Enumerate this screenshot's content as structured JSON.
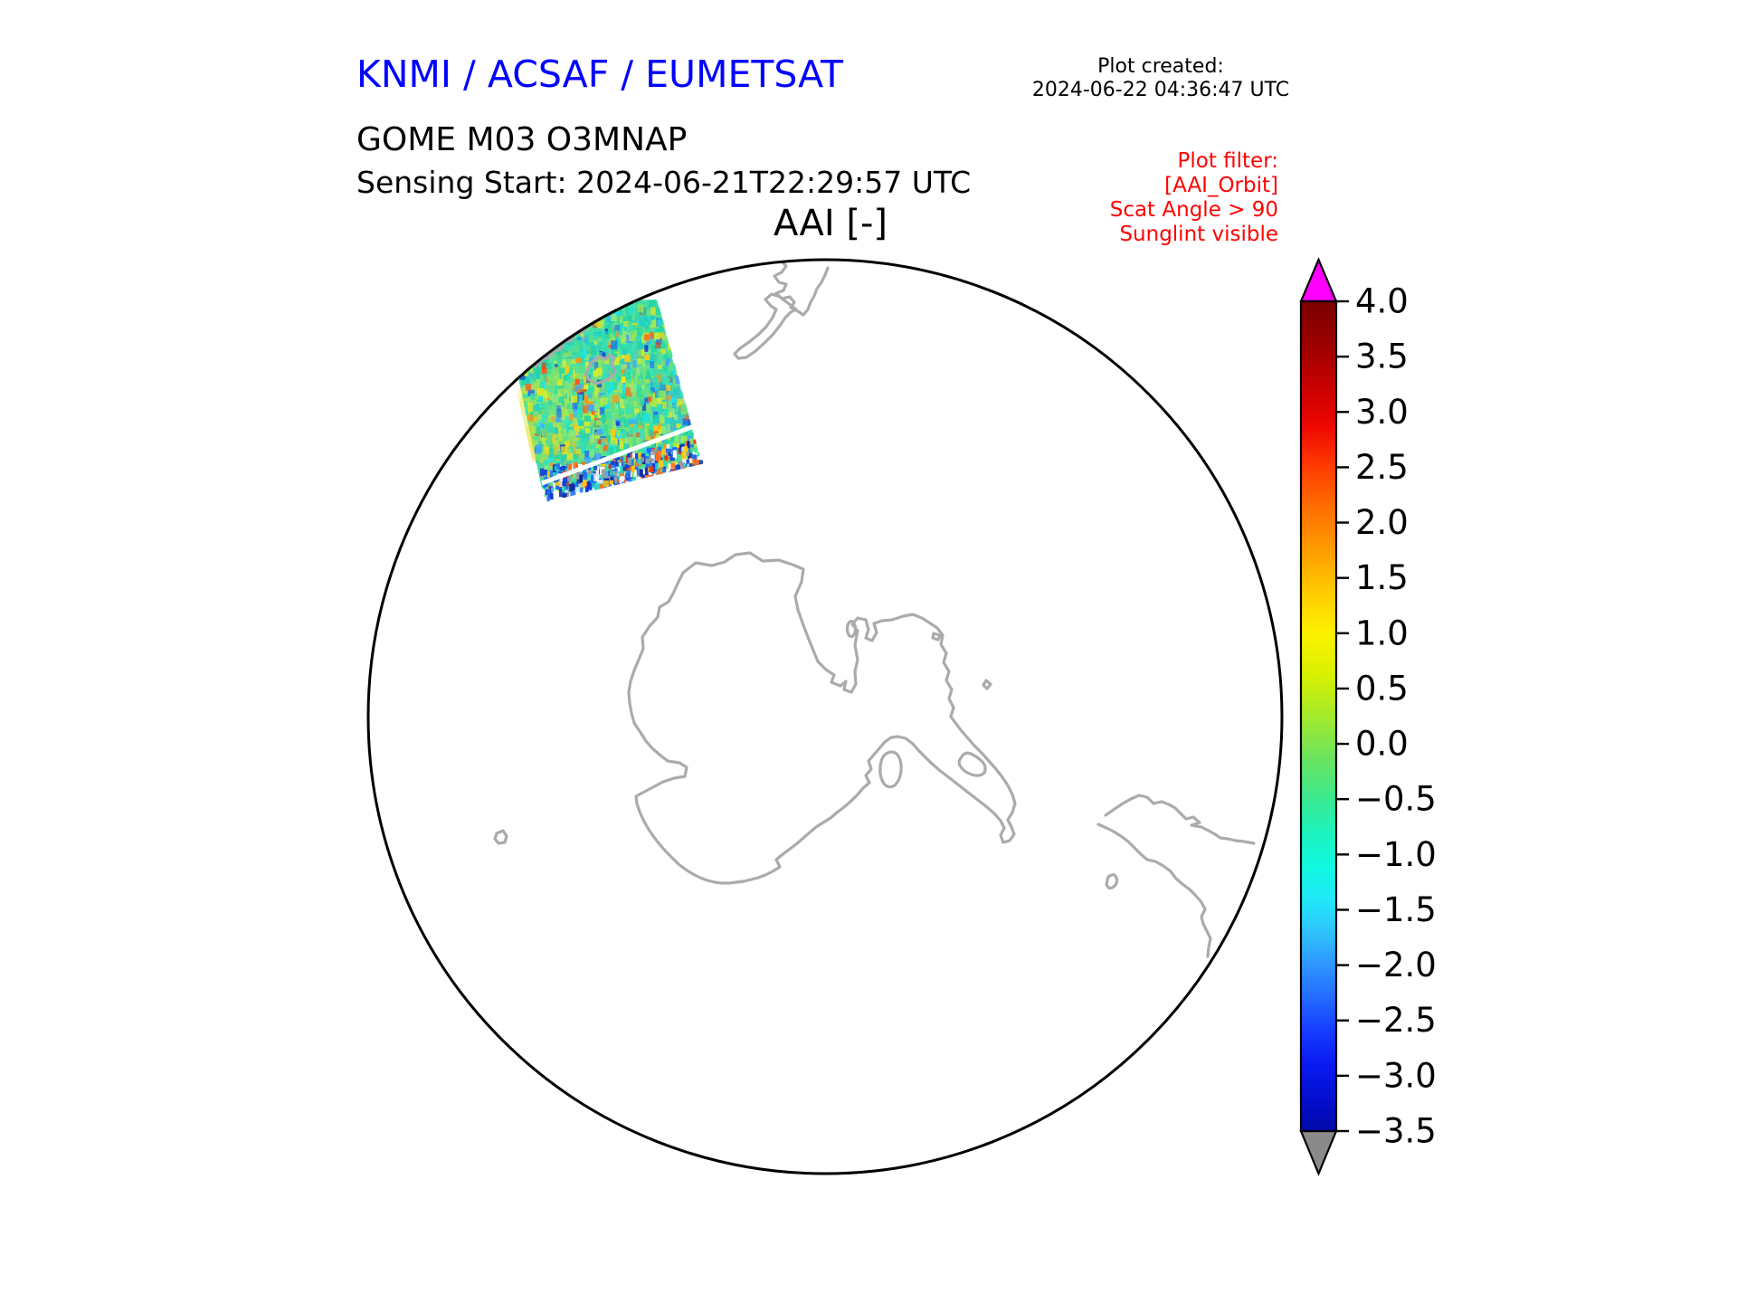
{
  "header": {
    "agency_title": "KNMI / ACSAF / EUMETSAT",
    "agency_title_color": "#0000ff",
    "plot_created_label": "Plot created:",
    "plot_created_timestamp": "2024-06-22 04:36:47 UTC",
    "product_title": "GOME M03 O3MNAP",
    "sensing_start": "Sensing Start: 2024-06-21T22:29:57 UTC"
  },
  "plot": {
    "title": "AAI [-]",
    "filter_lines": [
      "Plot filter:",
      "[AAI_Orbit]",
      "Scat Angle > 90",
      "Sunglint visible"
    ],
    "filter_color": "#ff0000",
    "map_outline_color": "#000000",
    "coastline_color": "#ababab",
    "background_color": "#ffffff"
  },
  "colorbar": {
    "tick_labels": [
      "4.0",
      "3.5",
      "3.0",
      "2.5",
      "2.0",
      "1.5",
      "1.0",
      "0.5",
      "0.0",
      "−0.5",
      "−1.0",
      "−1.5",
      "−2.0",
      "−2.5",
      "−3.0",
      "−3.5"
    ],
    "over_arrow_color": "#ff00ff",
    "under_arrow_color": "#8a8a8a",
    "gradient_stops": [
      [
        0.0,
        "#7a0000"
      ],
      [
        0.05,
        "#9a0000"
      ],
      [
        0.1,
        "#c60000"
      ],
      [
        0.15,
        "#ee0600"
      ],
      [
        0.2,
        "#ff3c00"
      ],
      [
        0.25,
        "#ff6f00"
      ],
      [
        0.3,
        "#ff9d00"
      ],
      [
        0.35,
        "#ffca00"
      ],
      [
        0.4,
        "#fdf200"
      ],
      [
        0.45,
        "#d8f000"
      ],
      [
        0.5,
        "#a4ea2c"
      ],
      [
        0.55,
        "#6ce45e"
      ],
      [
        0.6,
        "#3ae990"
      ],
      [
        0.64,
        "#1df2be"
      ],
      [
        0.68,
        "#0ff9de"
      ],
      [
        0.72,
        "#20e9f9"
      ],
      [
        0.76,
        "#2fc3fb"
      ],
      [
        0.8,
        "#2f96ff"
      ],
      [
        0.84,
        "#2369ff"
      ],
      [
        0.88,
        "#163cff"
      ],
      [
        0.92,
        "#0919f2"
      ],
      [
        0.96,
        "#040fd0"
      ],
      [
        1.0,
        "#0009a8"
      ]
    ]
  },
  "swath": {
    "base_color": "#45dca6",
    "gap_line_color": "#ffffff",
    "palette_main": [
      [
        "#24d6a2",
        14
      ],
      [
        "#32e0b2",
        12
      ],
      [
        "#1fcfc2",
        8
      ],
      [
        "#54e08e",
        12
      ],
      [
        "#7ee26a",
        10
      ],
      [
        "#abe84a",
        9
      ],
      [
        "#d3ec30",
        7
      ],
      [
        "#f3e812",
        5
      ],
      [
        "#ffc810",
        3
      ],
      [
        "#ff9414",
        2
      ],
      [
        "#ff5a18",
        2
      ],
      [
        "#e62e10",
        1
      ],
      [
        "#44a6f6",
        4
      ],
      [
        "#1e6ef0",
        3
      ],
      [
        "#0c3cd8",
        2
      ],
      [
        "#19e2ea",
        6
      ],
      [
        "#8de87c",
        4
      ]
    ],
    "palette_edge": [
      [
        "#1e6ef0",
        18
      ],
      [
        "#0c3cd8",
        15
      ],
      [
        "#07279e",
        8
      ],
      [
        "#2bd8c8",
        12
      ],
      [
        "#54e08e",
        8
      ],
      [
        "#ff6a18",
        8
      ],
      [
        "#e62e10",
        7
      ],
      [
        "#ffc810",
        5
      ],
      [
        "#ffffff",
        12
      ],
      [
        "#9a9a9a",
        7
      ]
    ]
  },
  "chart_data": {
    "type": "heatmap",
    "title": "AAI [-]",
    "subtitle": "GOME M03 O3MNAP — Sensing Start: 2024-06-21T22:29:57 UTC",
    "projection": "south polar stereographic hemisphere (Antarctica centered, New Zealand at top)",
    "colorbar": {
      "label": "AAI [-]",
      "ticks": [
        4.0,
        3.5,
        3.0,
        2.5,
        2.0,
        1.5,
        1.0,
        0.5,
        0.0,
        -0.5,
        -1.0,
        -1.5,
        -2.0,
        -2.5,
        -3.0,
        -3.5
      ],
      "vmin": -3.5,
      "vmax": 4.0,
      "over_color": "magenta",
      "under_color": "gray",
      "colormap": "rainbow: dark red at 4.0 through orange, yellow, green, cyan to dark blue at -3.5"
    },
    "swath_summary": {
      "location": "single orbit swath in upper-left quadrant of hemisphere, south-west of New Zealand",
      "typical_values": "mostly between -1.0 and +1.0 (green/turquoise pixels)",
      "features": "yellow/orange patches on left-centre, scattered blue and red pixels up to about ±3, dense dark-blue/red speckled ragged lower edge, narrow white data-gap seam across lower part"
    },
    "land_outlines": [
      "Antarctica with Ross Sea notch, Antarctic Peninsula and inner ice-shelf islands",
      "New Zealand (clipped at top edge)",
      "southern tip of South America (clipped at right edge)",
      "small sub-antarctic islands"
    ],
    "legend_position": "vertical colorbar at right",
    "grid": false
  }
}
